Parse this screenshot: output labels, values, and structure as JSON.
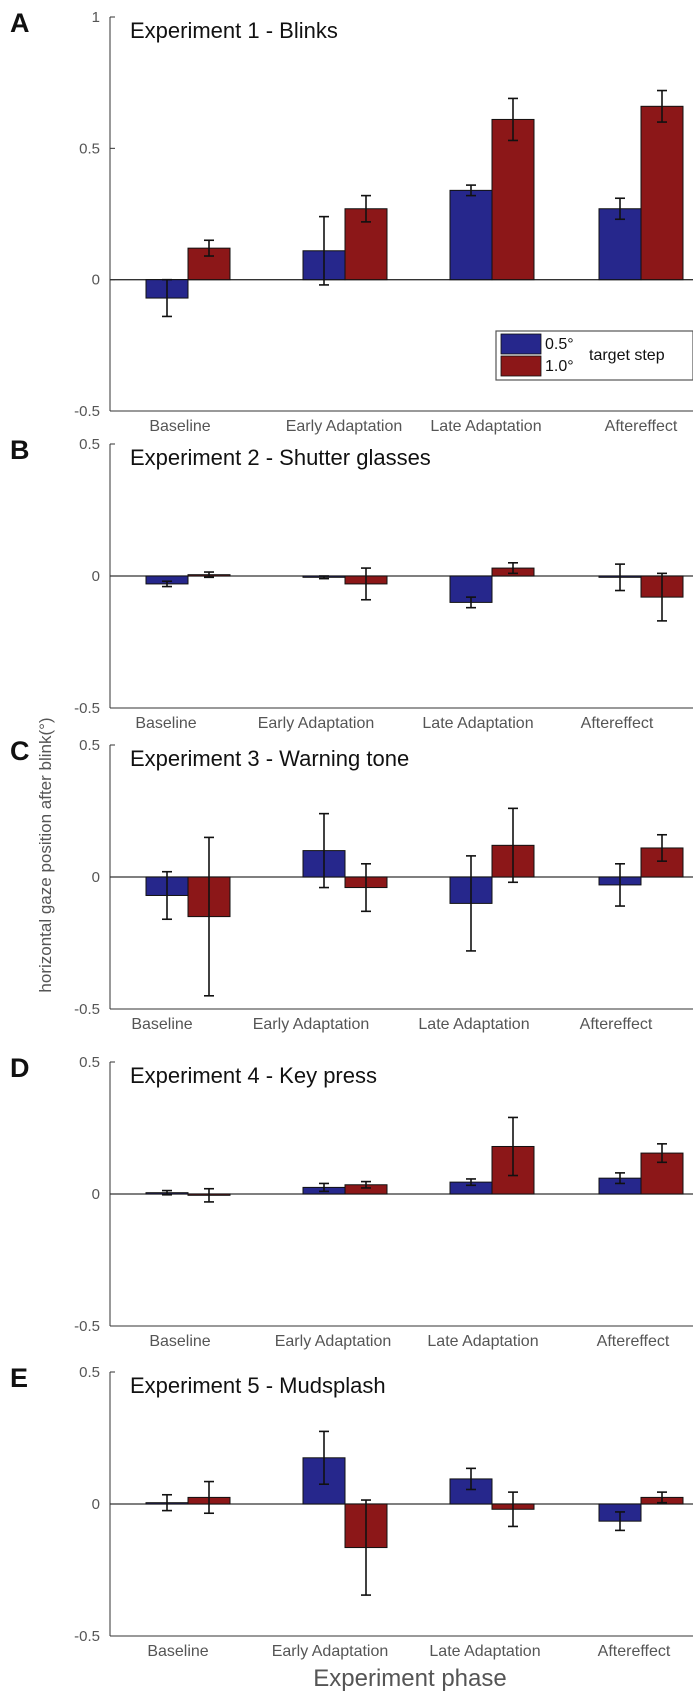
{
  "figure": {
    "xlabel": "Experiment phase",
    "ylabel": "horizontal gaze position after blink(°)",
    "colors": {
      "series_0_5": "#26278c",
      "series_1_0": "#8c1718",
      "axis": "#333333",
      "text": "#555555"
    }
  },
  "chart_data": [
    {
      "type": "bar",
      "panel_letter": "A",
      "title": "Experiment 1 - Blinks",
      "categories": [
        "Baseline",
        "Early Adaptation",
        "Late Adaptation",
        "Aftereffect"
      ],
      "ylim": [
        -0.5,
        1
      ],
      "yticks": [
        -0.5,
        0,
        0.5,
        1
      ],
      "ytick_labels": [
        "-0.5",
        "0",
        "0.5",
        "1"
      ],
      "series": [
        {
          "name": "0.5°",
          "values": [
            -0.07,
            0.11,
            0.34,
            0.27
          ],
          "errors": [
            0.07,
            0.13,
            0.02,
            0.04
          ]
        },
        {
          "name": "1.0°",
          "values": [
            0.12,
            0.27,
            0.61,
            0.66
          ],
          "errors": [
            0.03,
            0.05,
            0.08,
            0.06
          ]
        }
      ],
      "legend": {
        "entries": [
          "0.5°",
          "1.0°"
        ],
        "title": "target step",
        "position": "lower-right"
      }
    },
    {
      "type": "bar",
      "panel_letter": "B",
      "title": "Experiment 2 - Shutter glasses",
      "categories": [
        "Baseline",
        "Early Adaptation",
        "Late Adaptation",
        "Aftereffect"
      ],
      "ylim": [
        -0.5,
        0.5
      ],
      "yticks": [
        -0.5,
        0,
        0.5
      ],
      "ytick_labels": [
        "-0.5",
        "0",
        "0.5"
      ],
      "series": [
        {
          "name": "0.5°",
          "values": [
            -0.03,
            -0.005,
            -0.1,
            -0.005
          ],
          "errors": [
            0.01,
            0.005,
            0.02,
            0.05
          ]
        },
        {
          "name": "1.0°",
          "values": [
            0.005,
            -0.03,
            0.03,
            -0.08
          ],
          "errors": [
            0.01,
            0.06,
            0.02,
            0.09
          ]
        }
      ]
    },
    {
      "type": "bar",
      "panel_letter": "C",
      "title": "Experiment 3 - Warning tone",
      "categories": [
        "Baseline",
        "Early Adaptation",
        "Late Adaptation",
        "Aftereffect"
      ],
      "ylim": [
        -0.5,
        0.5
      ],
      "yticks": [
        -0.5,
        0,
        0.5
      ],
      "ytick_labels": [
        "-0.5",
        "0",
        "0.5"
      ],
      "series": [
        {
          "name": "0.5°",
          "values": [
            -0.07,
            0.1,
            -0.1,
            -0.03
          ],
          "errors": [
            0.09,
            0.14,
            0.18,
            0.08
          ]
        },
        {
          "name": "1.0°",
          "values": [
            -0.15,
            -0.04,
            0.12,
            0.11
          ],
          "errors": [
            0.3,
            0.09,
            0.14,
            0.05
          ]
        }
      ]
    },
    {
      "type": "bar",
      "panel_letter": "D",
      "title": "Experiment 4 - Key press",
      "categories": [
        "Baseline",
        "Early Adaptation",
        "Late Adaptation",
        "Aftereffect"
      ],
      "ylim": [
        -0.5,
        0.5
      ],
      "yticks": [
        -0.5,
        0,
        0.5
      ],
      "ytick_labels": [
        "-0.5",
        "0",
        "0.5"
      ],
      "series": [
        {
          "name": "0.5°",
          "values": [
            0.005,
            0.025,
            0.045,
            0.06
          ],
          "errors": [
            0.008,
            0.015,
            0.012,
            0.02
          ]
        },
        {
          "name": "1.0°",
          "values": [
            -0.005,
            0.035,
            0.18,
            0.155
          ],
          "errors": [
            0.025,
            0.012,
            0.11,
            0.035
          ]
        }
      ]
    },
    {
      "type": "bar",
      "panel_letter": "E",
      "title": "Experiment 5 - Mudsplash",
      "categories": [
        "Baseline",
        "Early Adaptation",
        "Late Adaptation",
        "Aftereffect"
      ],
      "ylim": [
        -0.5,
        0.5
      ],
      "yticks": [
        -0.5,
        0,
        0.5
      ],
      "ytick_labels": [
        "-0.5",
        "0",
        "0.5"
      ],
      "series": [
        {
          "name": "0.5°",
          "values": [
            0.005,
            0.175,
            0.095,
            -0.065
          ],
          "errors": [
            0.03,
            0.1,
            0.04,
            0.035
          ]
        },
        {
          "name": "1.0°",
          "values": [
            0.025,
            -0.165,
            -0.02,
            0.025
          ],
          "errors": [
            0.06,
            0.18,
            0.065,
            0.02
          ]
        }
      ]
    }
  ]
}
